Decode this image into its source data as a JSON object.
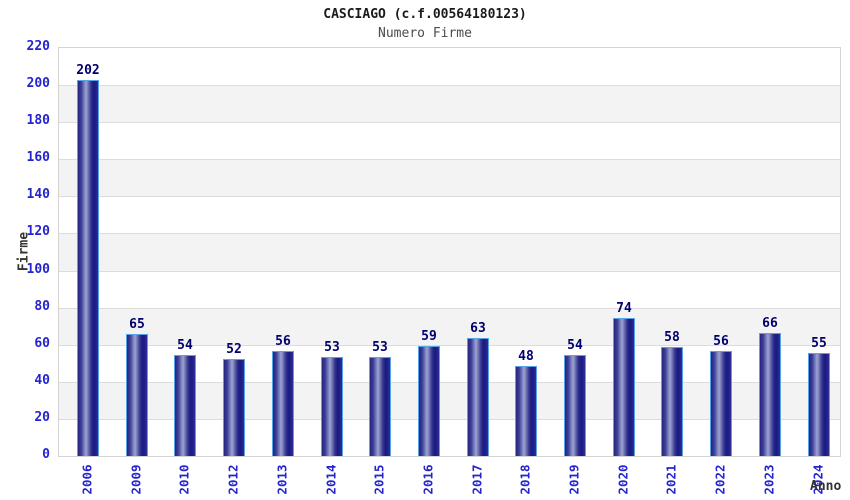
{
  "title": "CASCIAGO (c.f.00564180123)",
  "subtitle": "Numero Firme",
  "axes": {
    "x_title": "Anno",
    "y_title": "Firme"
  },
  "chart_data": {
    "type": "bar",
    "title": "CASCIAGO (c.f.00564180123)",
    "subtitle": "Numero Firme",
    "xlabel": "Anno",
    "ylabel": "Firme",
    "categories": [
      "2006",
      "2009",
      "2010",
      "2012",
      "2013",
      "2014",
      "2015",
      "2016",
      "2017",
      "2018",
      "2019",
      "2020",
      "2021",
      "2022",
      "2023",
      "2024"
    ],
    "values": [
      202,
      65,
      54,
      52,
      56,
      53,
      53,
      59,
      63,
      48,
      54,
      74,
      58,
      56,
      66,
      55
    ],
    "ylim": [
      0,
      220
    ],
    "ytick_step": 20,
    "grid": "horizontal gridlines with alternating white/gray bands",
    "legend": "none",
    "bar_labels_shown": true
  },
  "colors": {
    "bar_dark": "#26267e",
    "bar_highlight": "#989dcd",
    "bar_border": "#5aa2e6",
    "tick_label": "#2424cf",
    "value_label": "#00006e",
    "axis_title": "#333333",
    "title_text": "#1a1a1a",
    "subtitle_text": "#4d4d4d",
    "band_gray": "#f3f3f3",
    "gridline": "#dcdcdc",
    "plot_border": "#d4d4d4",
    "background": "#ffffff"
  }
}
